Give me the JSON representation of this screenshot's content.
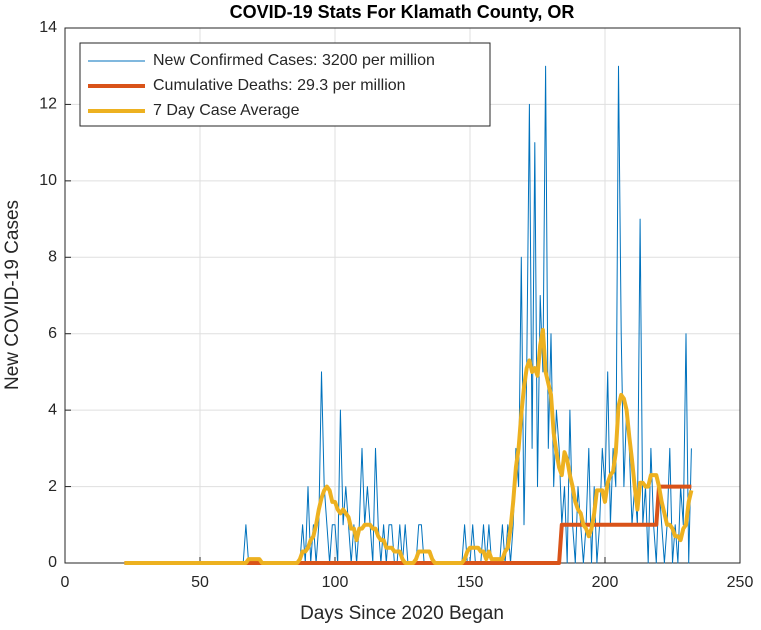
{
  "chart_data": {
    "type": "line",
    "title": "COVID-19 Stats For Klamath County, OR",
    "xlabel": "Days Since 2020 Began",
    "ylabel": "New COVID-19 Cases",
    "xlim": [
      0,
      250
    ],
    "xticks": [
      0,
      50,
      100,
      150,
      200,
      250
    ],
    "ylim": [
      0,
      14
    ],
    "yticks": [
      0,
      2,
      4,
      6,
      8,
      10,
      12,
      14
    ],
    "grid": true,
    "legend": "upper left",
    "x": [
      22,
      23,
      24,
      25,
      26,
      27,
      28,
      29,
      30,
      31,
      32,
      33,
      34,
      35,
      36,
      37,
      38,
      39,
      40,
      41,
      42,
      43,
      44,
      45,
      46,
      47,
      48,
      49,
      50,
      51,
      52,
      53,
      54,
      55,
      56,
      57,
      58,
      59,
      60,
      61,
      62,
      63,
      64,
      65,
      66,
      67,
      68,
      69,
      70,
      71,
      72,
      73,
      74,
      75,
      76,
      77,
      78,
      79,
      80,
      81,
      82,
      83,
      84,
      85,
      86,
      87,
      88,
      89,
      90,
      91,
      92,
      93,
      94,
      95,
      96,
      97,
      98,
      99,
      100,
      101,
      102,
      103,
      104,
      105,
      106,
      107,
      108,
      109,
      110,
      111,
      112,
      113,
      114,
      115,
      116,
      117,
      118,
      119,
      120,
      121,
      122,
      123,
      124,
      125,
      126,
      127,
      128,
      129,
      130,
      131,
      132,
      133,
      134,
      135,
      136,
      137,
      138,
      139,
      140,
      141,
      142,
      143,
      144,
      145,
      146,
      147,
      148,
      149,
      150,
      151,
      152,
      153,
      154,
      155,
      156,
      157,
      158,
      159,
      160,
      161,
      162,
      163,
      164,
      165,
      166,
      167,
      168,
      169,
      170,
      171,
      172,
      173,
      174,
      175,
      176,
      177,
      178,
      179,
      180,
      181,
      182,
      183,
      184,
      185,
      186,
      187,
      188,
      189,
      190,
      191,
      192,
      193,
      194,
      195,
      196,
      197,
      198,
      199,
      200,
      201,
      202,
      203,
      204,
      205,
      206,
      207,
      208,
      209,
      210,
      211,
      212,
      213,
      214,
      215,
      216,
      217,
      218,
      219,
      220,
      221,
      222,
      223,
      224,
      225,
      226,
      227,
      228,
      229,
      230,
      231,
      232
    ],
    "series": [
      {
        "name": "New Confirmed Cases: 3200 per million",
        "color": "#0072bd",
        "width": 1,
        "values": [
          0,
          0,
          0,
          0,
          0,
          0,
          0,
          0,
          0,
          0,
          0,
          0,
          0,
          0,
          0,
          0,
          0,
          0,
          0,
          0,
          0,
          0,
          0,
          0,
          0,
          0,
          0,
          0,
          0,
          0,
          0,
          0,
          0,
          0,
          0,
          0,
          0,
          0,
          0,
          0,
          0,
          0,
          0,
          0,
          0,
          1,
          0,
          0,
          0,
          0,
          0,
          0,
          0,
          0,
          0,
          0,
          0,
          0,
          0,
          0,
          0,
          0,
          0,
          0,
          0,
          0,
          1,
          0,
          2,
          0,
          1,
          0,
          1,
          5,
          2,
          1,
          0,
          1,
          1,
          0,
          4,
          1,
          2,
          1,
          0,
          1,
          0,
          1,
          3,
          1,
          2,
          1,
          0,
          3,
          1,
          0,
          1,
          0,
          1,
          1,
          0,
          0,
          1,
          0,
          1,
          0,
          0,
          0,
          0,
          1,
          1,
          0,
          0,
          0,
          0,
          0,
          0,
          0,
          0,
          0,
          0,
          0,
          0,
          0,
          0,
          0,
          1,
          0,
          0,
          1,
          0,
          0,
          0,
          1,
          0,
          1,
          0,
          0,
          0,
          0,
          1,
          0,
          1,
          0,
          1,
          3,
          2,
          8,
          1,
          5,
          12,
          3,
          11,
          2,
          7,
          5,
          13,
          3,
          6,
          2,
          4,
          3,
          1,
          2,
          0,
          4,
          1,
          0,
          2,
          1,
          0,
          1,
          3,
          0,
          2,
          0,
          1,
          3,
          2,
          5,
          1,
          3,
          2,
          13,
          6,
          2,
          4,
          3,
          1,
          2,
          1,
          9,
          1,
          2,
          0,
          3,
          1,
          0,
          2,
          1,
          0,
          1,
          3,
          0,
          1,
          0,
          2,
          1,
          6,
          0,
          3
        ]
      },
      {
        "name": "Cumulative Deaths: 29.3 per million",
        "color": "#d95319",
        "width": 4,
        "values": [
          0,
          0,
          0,
          0,
          0,
          0,
          0,
          0,
          0,
          0,
          0,
          0,
          0,
          0,
          0,
          0,
          0,
          0,
          0,
          0,
          0,
          0,
          0,
          0,
          0,
          0,
          0,
          0,
          0,
          0,
          0,
          0,
          0,
          0,
          0,
          0,
          0,
          0,
          0,
          0,
          0,
          0,
          0,
          0,
          0,
          0,
          0,
          0,
          0,
          0,
          0,
          0,
          0,
          0,
          0,
          0,
          0,
          0,
          0,
          0,
          0,
          0,
          0,
          0,
          0,
          0,
          0,
          0,
          0,
          0,
          0,
          0,
          0,
          0,
          0,
          0,
          0,
          0,
          0,
          0,
          0,
          0,
          0,
          0,
          0,
          0,
          0,
          0,
          0,
          0,
          0,
          0,
          0,
          0,
          0,
          0,
          0,
          0,
          0,
          0,
          0,
          0,
          0,
          0,
          0,
          0,
          0,
          0,
          0,
          0,
          0,
          0,
          0,
          0,
          0,
          0,
          0,
          0,
          0,
          0,
          0,
          0,
          0,
          0,
          0,
          0,
          0,
          0,
          0,
          0,
          0,
          0,
          0,
          0,
          0,
          0,
          0,
          0,
          0,
          0,
          0,
          0,
          0,
          0,
          0,
          0,
          0,
          0,
          0,
          0,
          0,
          0,
          0,
          0,
          0,
          0,
          0,
          0,
          0,
          0,
          0,
          0,
          1,
          1,
          1,
          1,
          1,
          1,
          1,
          1,
          1,
          1,
          1,
          1,
          1,
          1,
          1,
          1,
          1,
          1,
          1,
          1,
          1,
          1,
          1,
          1,
          1,
          1,
          1,
          1,
          1,
          1,
          1,
          1,
          1,
          1,
          1,
          1,
          2,
          2,
          2,
          2,
          2,
          2,
          2,
          2,
          2,
          2,
          2,
          2,
          2
        ]
      },
      {
        "name": "7 Day Case Average",
        "color": "#edb120",
        "width": 4,
        "values": [
          0,
          0,
          0,
          0,
          0,
          0,
          0,
          0,
          0,
          0,
          0,
          0,
          0,
          0,
          0,
          0,
          0,
          0,
          0,
          0,
          0,
          0,
          0,
          0,
          0,
          0,
          0,
          0,
          0,
          0,
          0,
          0,
          0,
          0,
          0,
          0,
          0,
          0,
          0,
          0,
          0,
          0,
          0,
          0,
          0,
          0,
          0.1,
          0.1,
          0.1,
          0.1,
          0.1,
          0,
          0,
          0,
          0,
          0,
          0,
          0,
          0,
          0,
          0,
          0,
          0,
          0,
          0,
          0.1,
          0.3,
          0.3,
          0.4,
          0.6,
          0.7,
          1.0,
          1.4,
          1.7,
          1.9,
          2.0,
          1.9,
          1.6,
          1.6,
          1.4,
          1.3,
          1.4,
          1.3,
          1.2,
          0.9,
          0.9,
          0.6,
          0.9,
          0.9,
          1.0,
          1.0,
          1.0,
          0.9,
          0.9,
          0.7,
          0.6,
          0.6,
          0.4,
          0.4,
          0.4,
          0.3,
          0.3,
          0.3,
          0.1,
          0,
          0,
          0,
          0,
          0.1,
          0.3,
          0.3,
          0.3,
          0.3,
          0.3,
          0.1,
          0,
          0,
          0,
          0,
          0,
          0,
          0,
          0,
          0,
          0,
          0,
          0.1,
          0.3,
          0.4,
          0.4,
          0.4,
          0.4,
          0.3,
          0.3,
          0.1,
          0.3,
          0.1,
          0.1,
          0.1,
          0.1,
          0.1,
          0.3,
          0.4,
          0.9,
          1.6,
          2.5,
          3.0,
          3.9,
          4.6,
          5.1,
          5.3,
          5.0,
          5.1,
          4.9,
          5.7,
          6.1,
          5.0,
          4.7,
          4.4,
          3.4,
          2.9,
          2.5,
          2.3,
          2.9,
          2.7,
          2.3,
          2.0,
          1.6,
          1.4,
          1.3,
          1.0,
          0.9,
          0.7,
          0.9,
          1.3,
          1.9,
          1.9,
          1.9,
          1.6,
          2.1,
          2.3,
          2.4,
          2.9,
          4.1,
          4.4,
          4.3,
          4.0,
          3.3,
          2.7,
          2.0,
          1.4,
          2.1,
          2.1,
          2.0,
          2.0,
          2.3,
          2.3,
          2.3,
          2.0,
          1.6,
          1.3,
          1.0,
          1.0,
          0.9,
          0.7,
          0.7,
          0.6,
          0.9,
          1.0,
          1.6,
          1.9
        ]
      }
    ]
  }
}
